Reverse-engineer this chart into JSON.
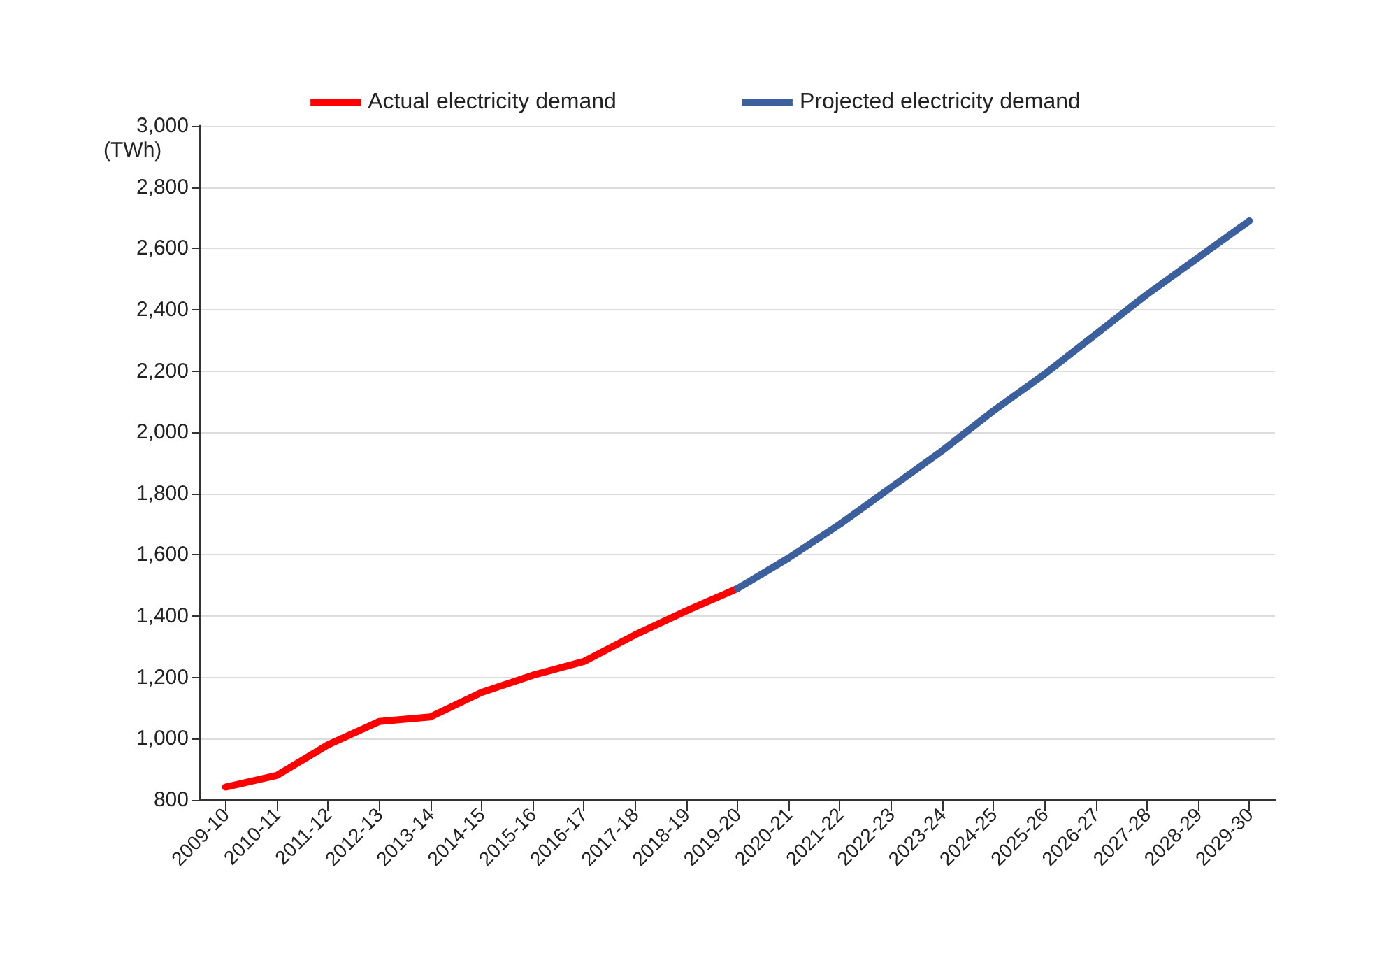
{
  "chart_data": {
    "type": "line",
    "ylabel": "(TWh)",
    "categories": [
      "2009-10",
      "2010-11",
      "2011-12",
      "2012-13",
      "2013-14",
      "2014-15",
      "2015-16",
      "2016-17",
      "2017-18",
      "2018-19",
      "2019-20",
      "2020-21",
      "2021-22",
      "2022-23",
      "2023-24",
      "2024-25",
      "2025-26",
      "2026-27",
      "2027-28",
      "2028-29",
      "2029-30"
    ],
    "series": [
      {
        "name": "Actual electricity demand",
        "color": "#ff0000",
        "values": [
          842,
          880,
          980,
          1056,
          1071,
          1151,
          1207,
          1252,
          1339,
          1417,
          1490,
          null,
          null,
          null,
          null,
          null,
          null,
          null,
          null,
          null,
          null
        ]
      },
      {
        "name": "Projected electricity demand",
        "color": "#3c5f9e",
        "values": [
          null,
          null,
          null,
          null,
          null,
          null,
          null,
          null,
          null,
          null,
          1490,
          1590,
          1700,
          1820,
          1940,
          2070,
          2190,
          2320,
          2450,
          2570,
          2690
        ]
      }
    ],
    "ylim": [
      800,
      3000
    ],
    "yticks": [
      800,
      {
        "value": 1000,
        "label": "1,000"
      },
      {
        "value": 1200,
        "label": "1,200"
      },
      {
        "value": 1400,
        "label": "1,400"
      },
      {
        "value": 1600,
        "label": "1,600"
      },
      {
        "value": 1800,
        "label": "1,800"
      },
      {
        "value": 2000,
        "label": "2,000"
      },
      {
        "value": 2200,
        "label": "2,200"
      },
      {
        "value": 2400,
        "label": "2,400"
      },
      {
        "value": 2600,
        "label": "2,600"
      },
      {
        "value": 2800,
        "label": "2,800"
      },
      {
        "value": 3000,
        "label": "3,000"
      }
    ],
    "grid": "y",
    "legend": "top",
    "marker": "none",
    "line_style": "solid"
  }
}
